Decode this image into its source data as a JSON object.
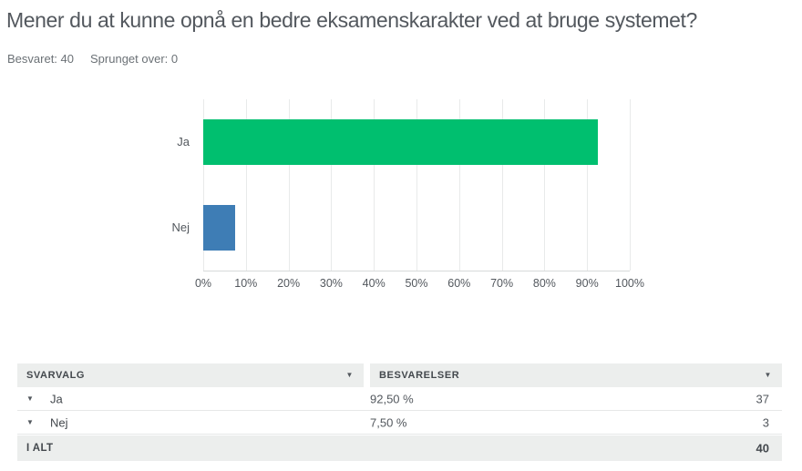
{
  "page": {
    "title": "Mener du at kunne opnå en bedre eksamenskarakter ved at bruge systemet?",
    "answered": "Besvaret: 40",
    "skipped": "Sprunget over: 0"
  },
  "chart_data": {
    "type": "bar",
    "orientation": "horizontal",
    "title": "",
    "categories": [
      "Ja",
      "Nej"
    ],
    "values": [
      92.5,
      7.5
    ],
    "bar_colors": [
      "#00BF6F",
      "#3E7DB5"
    ],
    "x_ticks": [
      "0%",
      "10%",
      "20%",
      "30%",
      "40%",
      "50%",
      "60%",
      "70%",
      "80%",
      "90%",
      "100%"
    ],
    "xlim": [
      0,
      100
    ],
    "grid": true,
    "legend": false
  },
  "table": {
    "header": {
      "col1": "SVARVALG",
      "col2": "BESVARELSER"
    },
    "rows": [
      {
        "label": "Ja",
        "percent": "92,50 %",
        "count": "37"
      },
      {
        "label": "Nej",
        "percent": "7,50 %",
        "count": "3"
      }
    ],
    "footer": {
      "label": "I ALT",
      "total": "40"
    }
  },
  "icons": {
    "sort_caret": "▼",
    "row_expand_caret": "▼"
  },
  "colors": {
    "bar_yes": "#00BF6F",
    "bar_no": "#3E7DB5",
    "table_header_bg": "#ECEEED",
    "text_dark": "#43484D",
    "text_gray": "#6B7176"
  }
}
